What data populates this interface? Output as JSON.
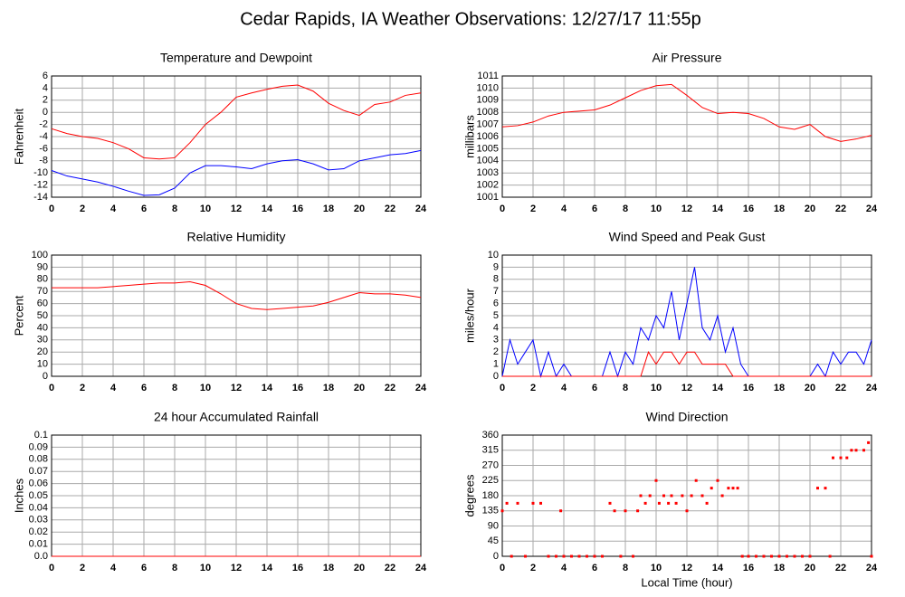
{
  "title": "Cedar Rapids, IA Weather Observations: 12/27/17 11:55p",
  "chart_data": [
    {
      "type": "line",
      "title": "Temperature and Dewpoint",
      "ylabel": "Fahrenheit",
      "x": [
        0,
        1,
        2,
        3,
        4,
        5,
        6,
        7,
        8,
        9,
        10,
        11,
        12,
        13,
        14,
        15,
        16,
        17,
        18,
        19,
        20,
        21,
        22,
        23,
        24
      ],
      "series": [
        {
          "color": "#ff0000",
          "values": [
            -2.7,
            -3.5,
            -4,
            -4.3,
            -5,
            -6,
            -7.5,
            -7.7,
            -7.5,
            -5,
            -2,
            0,
            2.5,
            3.2,
            3.8,
            4.3,
            4.5,
            3.5,
            1.5,
            0.3,
            -0.5,
            1.3,
            1.7,
            2.8,
            3.2
          ]
        },
        {
          "color": "#0000ff",
          "values": [
            -9.6,
            -10.5,
            -11,
            -11.5,
            -12.2,
            -13,
            -13.7,
            -13.6,
            -12.5,
            -10,
            -8.8,
            -8.8,
            -9,
            -9.3,
            -8.5,
            -8,
            -7.8,
            -8.5,
            -9.5,
            -9.3,
            -8,
            -7.5,
            -7,
            -6.8,
            -6.3
          ]
        }
      ],
      "xlim": [
        0,
        24
      ],
      "xticks": [
        0,
        2,
        4,
        6,
        8,
        10,
        12,
        14,
        16,
        18,
        20,
        22,
        24
      ],
      "ylim": [
        -14,
        6
      ],
      "yticks": [
        -14,
        -12,
        -10,
        -8,
        -6,
        -4,
        -2,
        0,
        2,
        4,
        6
      ],
      "grid": true
    },
    {
      "type": "line",
      "title": "Air Pressure",
      "ylabel": "millibars",
      "x": [
        0,
        1,
        2,
        3,
        4,
        5,
        6,
        7,
        8,
        9,
        10,
        11,
        12,
        13,
        14,
        15,
        16,
        17,
        18,
        19,
        20,
        21,
        22,
        23,
        24
      ],
      "series": [
        {
          "color": "#ff0000",
          "values": [
            1006.8,
            1006.9,
            1007.2,
            1007.7,
            1008,
            1008.1,
            1008.2,
            1008.6,
            1009.2,
            1009.8,
            1010.2,
            1010.3,
            1009.4,
            1008.4,
            1007.9,
            1008,
            1007.9,
            1007.5,
            1006.8,
            1006.6,
            1007,
            1006,
            1005.6,
            1005.8,
            1006.1
          ]
        }
      ],
      "xlim": [
        0,
        24
      ],
      "xticks": [
        0,
        2,
        4,
        6,
        8,
        10,
        12,
        14,
        16,
        18,
        20,
        22,
        24
      ],
      "ylim": [
        1001,
        1011
      ],
      "yticks": [
        1001,
        1002,
        1003,
        1004,
        1005,
        1006,
        1007,
        1008,
        1009,
        1010,
        1011
      ],
      "grid": true
    },
    {
      "type": "line",
      "title": "Relative Humidity",
      "ylabel": "Percent",
      "x": [
        0,
        1,
        2,
        3,
        4,
        5,
        6,
        7,
        8,
        9,
        10,
        11,
        12,
        13,
        14,
        15,
        16,
        17,
        18,
        19,
        20,
        21,
        22,
        23,
        24
      ],
      "series": [
        {
          "color": "#ff0000",
          "values": [
            73,
            73,
            73,
            73,
            74,
            75,
            76,
            77,
            77,
            78,
            75,
            68,
            60,
            56,
            55,
            56,
            57,
            58,
            61,
            65,
            69,
            68,
            68,
            67,
            65
          ]
        }
      ],
      "xlim": [
        0,
        24
      ],
      "xticks": [
        0,
        2,
        4,
        6,
        8,
        10,
        12,
        14,
        16,
        18,
        20,
        22,
        24
      ],
      "ylim": [
        0,
        100
      ],
      "yticks": [
        0,
        10,
        20,
        30,
        40,
        50,
        60,
        70,
        80,
        90,
        100
      ],
      "grid": true
    },
    {
      "type": "line",
      "title": "Wind Speed and Peak Gust",
      "ylabel": "miles/hour",
      "x": [
        0,
        0.5,
        1,
        1.5,
        2,
        2.5,
        3,
        3.5,
        4,
        4.5,
        5,
        5.5,
        6,
        6.5,
        7,
        7.5,
        8,
        8.5,
        9,
        9.5,
        10,
        10.5,
        11,
        11.5,
        12,
        12.5,
        13,
        13.5,
        14,
        14.5,
        15,
        15.5,
        16,
        16.5,
        17,
        17.5,
        18,
        18.5,
        19,
        19.5,
        20,
        20.5,
        21,
        21.5,
        22,
        22.5,
        23,
        23.5,
        24
      ],
      "series": [
        {
          "color": "#0000ff",
          "values": [
            0,
            3,
            1,
            2,
            3,
            0,
            2,
            0,
            1,
            0,
            0,
            0,
            0,
            0,
            2,
            0,
            2,
            1,
            4,
            3,
            5,
            4,
            7,
            3,
            6,
            9,
            4,
            3,
            5,
            2,
            4,
            1,
            0,
            0,
            0,
            0,
            0,
            0,
            0,
            0,
            0,
            1,
            0,
            2,
            1,
            2,
            2,
            1,
            3
          ]
        },
        {
          "color": "#ff0000",
          "values": [
            0,
            0,
            0,
            0,
            0,
            0,
            0,
            0,
            0,
            0,
            0,
            0,
            0,
            0,
            0,
            0,
            0,
            0,
            0,
            2,
            1,
            2,
            2,
            1,
            2,
            2,
            1,
            1,
            1,
            1,
            0,
            0,
            0,
            0,
            0,
            0,
            0,
            0,
            0,
            0,
            0,
            0,
            0,
            0,
            0,
            0,
            0,
            0,
            0
          ]
        }
      ],
      "xlim": [
        0,
        24
      ],
      "xticks": [
        0,
        2,
        4,
        6,
        8,
        10,
        12,
        14,
        16,
        18,
        20,
        22,
        24
      ],
      "ylim": [
        0,
        10
      ],
      "yticks": [
        0,
        1,
        2,
        3,
        4,
        5,
        6,
        7,
        8,
        9,
        10
      ],
      "grid": true
    },
    {
      "type": "line",
      "title": "24 hour Accumulated Rainfall",
      "ylabel": "Inches",
      "x": [
        0,
        24
      ],
      "series": [
        {
          "color": "#ff0000",
          "values": [
            0,
            0
          ]
        }
      ],
      "xlim": [
        0,
        24
      ],
      "xticks": [
        0,
        2,
        4,
        6,
        8,
        10,
        12,
        14,
        16,
        18,
        20,
        22,
        24
      ],
      "ylim": [
        0,
        0.1
      ],
      "yticks": [
        {
          "value": 0,
          "label": "0.0"
        },
        0.01,
        0.02,
        0.03,
        0.04,
        0.05,
        0.06,
        0.07,
        0.08,
        0.09,
        {
          "value": 0.1,
          "label": "0.1"
        }
      ],
      "grid": true
    },
    {
      "type": "scatter",
      "title": "Wind Direction",
      "ylabel": "degrees",
      "xlabel": "Local Time (hour)",
      "x": [
        0,
        0.3,
        0.6,
        1,
        1.5,
        2,
        2.5,
        3,
        3.5,
        3.8,
        4,
        4.5,
        5,
        5.5,
        6,
        6.5,
        7,
        7.3,
        7.7,
        8,
        8.5,
        8.8,
        9,
        9.3,
        9.6,
        10,
        10.2,
        10.5,
        10.8,
        11,
        11.3,
        11.7,
        12,
        12.3,
        12.6,
        13,
        13.3,
        13.6,
        14,
        14.3,
        14.7,
        15,
        15.3,
        15.6,
        16,
        16.5,
        17,
        17.5,
        18,
        18.5,
        19,
        19.5,
        20,
        20.5,
        21,
        21.3,
        21.5,
        22,
        22.4,
        22.7,
        23,
        23.5,
        23.8,
        24
      ],
      "series": [
        {
          "color": "#ff0000",
          "values": [
            135,
            157.5,
            0,
            157.5,
            0,
            157.5,
            157.5,
            0,
            0,
            135,
            0,
            0,
            0,
            0,
            0,
            0,
            157.5,
            135,
            0,
            135,
            0,
            135,
            180,
            157.5,
            180,
            225,
            157.5,
            180,
            157.5,
            180,
            157.5,
            180,
            135,
            180,
            225,
            180,
            157.5,
            202.5,
            225,
            180,
            202.5,
            202.5,
            202.5,
            0,
            0,
            0,
            0,
            0,
            0,
            0,
            0,
            0,
            0,
            202.5,
            202.5,
            0,
            292.5,
            292.5,
            292.5,
            315,
            315,
            315,
            337.5,
            0
          ]
        }
      ],
      "xlim": [
        0,
        24
      ],
      "xticks": [
        0,
        2,
        4,
        6,
        8,
        10,
        12,
        14,
        16,
        18,
        20,
        22,
        24
      ],
      "ylim": [
        0,
        360
      ],
      "yticks": [
        0,
        45,
        90,
        135,
        180,
        225,
        270,
        315,
        360
      ],
      "grid": true
    }
  ]
}
